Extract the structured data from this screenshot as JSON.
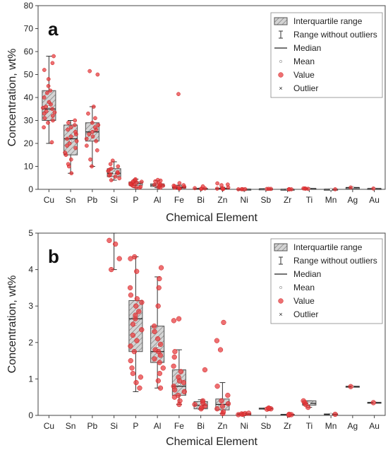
{
  "chart_data": [
    {
      "type": "box",
      "panel_label": "a",
      "xlabel": "Chemical Element",
      "ylabel": "Concentration, wt%",
      "ylim": [
        0,
        80
      ],
      "yticks": [
        "0",
        "10",
        "20",
        "30",
        "40",
        "50",
        "60",
        "70",
        "80"
      ],
      "categories": [
        "Cu",
        "Sn",
        "Pb",
        "Si",
        "P",
        "Al",
        "Fe",
        "Bi",
        "Zn",
        "Ni",
        "Sb",
        "Zr",
        "Ti",
        "Mn",
        "Ag",
        "Au"
      ],
      "legend": {
        "position": "top-right",
        "items": [
          "Interquartile range",
          "Range without outliers",
          "Median",
          "Mean",
          "Value",
          "Outlier"
        ]
      },
      "boxes": [
        {
          "q1": 30,
          "median": 35,
          "q3": 43,
          "whisker_low": 20,
          "whisker_high": 58,
          "mean": 36,
          "values": [
            20.5,
            27,
            29,
            30,
            31,
            32,
            33,
            33.5,
            34,
            35,
            35.5,
            36,
            37,
            38,
            40,
            42,
            43,
            45,
            48,
            52,
            55,
            58
          ]
        },
        {
          "q1": 15,
          "median": 22,
          "q3": 28,
          "whisker_low": 7,
          "whisker_high": 30,
          "mean": 21,
          "values": [
            7,
            10,
            11,
            13,
            15,
            16,
            18,
            19,
            20,
            21,
            22,
            23,
            24,
            25,
            26,
            27,
            28,
            29,
            30
          ]
        },
        {
          "q1": 21,
          "median": 25,
          "q3": 29,
          "whisker_low": 10,
          "whisker_high": 36,
          "mean": 25,
          "values": [
            10,
            13,
            17,
            19,
            21,
            22,
            23,
            24,
            25,
            26,
            27,
            28,
            29,
            31,
            33,
            36,
            50,
            51.5
          ]
        },
        {
          "q1": 5.5,
          "median": 7,
          "q3": 9,
          "whisker_low": 4,
          "whisker_high": 12,
          "mean": 7.3,
          "values": [
            4,
            4.8,
            5.5,
            6,
            6.5,
            7,
            7.5,
            8,
            8.5,
            9,
            10,
            11,
            12.5
          ]
        },
        {
          "q1": 1.8,
          "median": 2.6,
          "q3": 3.2,
          "whisker_low": 0.7,
          "whisker_high": 4.4,
          "mean": 2.5,
          "values": [
            0.7,
            0.9,
            1.1,
            1.5,
            1.9,
            2.1,
            2.4,
            2.6,
            2.9,
            3.1,
            3.3,
            3.5,
            4,
            4.4
          ]
        },
        {
          "q1": 1.2,
          "median": 1.8,
          "q3": 2.4,
          "whisker_low": 0.7,
          "whisker_high": 3.8,
          "mean": 1.9,
          "values": [
            0.7,
            1,
            1.3,
            1.6,
            1.8,
            2,
            2.3,
            2.6,
            3.5,
            3.8,
            4.1
          ]
        },
        {
          "q1": 0.5,
          "median": 0.8,
          "q3": 1.2,
          "whisker_low": 0.3,
          "whisker_high": 1.8,
          "mean": 0.9,
          "values": [
            0.3,
            0.5,
            0.7,
            0.9,
            1.1,
            1.3,
            1.6,
            1.8,
            2.7,
            41.5
          ]
        },
        {
          "q1": 0.2,
          "median": 0.3,
          "q3": 0.4,
          "whisker_low": 0.15,
          "whisker_high": 0.5,
          "mean": 0.3,
          "values": [
            0.2,
            0.3,
            0.4,
            0.5,
            1.3
          ]
        },
        {
          "q1": 0.2,
          "median": 0.3,
          "q3": 0.45,
          "whisker_low": 0.1,
          "whisker_high": 0.9,
          "mean": 0.35,
          "values": [
            0.1,
            0.2,
            0.3,
            0.5,
            0.8,
            1.8,
            2.1,
            2.6
          ]
        },
        {
          "q1": 0.02,
          "median": 0.04,
          "q3": 0.06,
          "whisker_low": 0.01,
          "whisker_high": 0.08,
          "mean": 0.04,
          "values": [
            0.02,
            0.04,
            0.06,
            0.08
          ]
        },
        {
          "q1": 0.17,
          "median": 0.19,
          "q3": 0.2,
          "whisker_low": 0.17,
          "whisker_high": 0.2,
          "mean": 0.19,
          "values": [
            0.17,
            0.19,
            0.2
          ]
        },
        {
          "q1": 0.01,
          "median": 0.02,
          "q3": 0.03,
          "whisker_low": 0.01,
          "whisker_high": 0.04,
          "mean": 0.02,
          "values": [
            0.01,
            0.02,
            0.03,
            0.04
          ]
        },
        {
          "q1": 0.25,
          "median": 0.32,
          "q3": 0.4,
          "whisker_low": 0.2,
          "whisker_high": 0.4,
          "mean": 0.32,
          "values": [
            0.22,
            0.3,
            0.36,
            0.4
          ]
        },
        {
          "q1": 0.02,
          "median": 0.03,
          "q3": 0.04,
          "whisker_low": 0.02,
          "whisker_high": 0.04,
          "mean": 0.03,
          "values": [
            0.03
          ]
        },
        {
          "q1": 0.78,
          "median": 0.79,
          "q3": 0.8,
          "whisker_low": 0.78,
          "whisker_high": 0.8,
          "mean": 0.79,
          "values": [
            0.79
          ]
        },
        {
          "q1": 0.35,
          "median": 0.35,
          "q3": 0.36,
          "whisker_low": 0.35,
          "whisker_high": 0.36,
          "mean": 0.35,
          "values": [
            0.35
          ]
        }
      ]
    },
    {
      "type": "box",
      "panel_label": "b",
      "xlabel": "Chemical Element",
      "ylabel": "Concentration, wt%",
      "ylim": [
        0,
        5
      ],
      "yticks": [
        "0",
        "1",
        "2",
        "3",
        "4",
        "5"
      ],
      "categories": [
        "Cu",
        "Sn",
        "Pb",
        "Si",
        "P",
        "Al",
        "Fe",
        "Bi",
        "Zn",
        "Ni",
        "Sb",
        "Zr",
        "Ti",
        "Mn",
        "Ag",
        "Au"
      ],
      "legend": {
        "position": "top-right",
        "items": [
          "Interquartile range",
          "Range without outliers",
          "Median",
          "Mean",
          "Value",
          "Outlier"
        ]
      },
      "boxes": [
        null,
        null,
        null,
        {
          "q1": null,
          "median": null,
          "q3": null,
          "whisker_low": 4.0,
          "whisker_high": 5.0,
          "mean": null,
          "values": [
            4.0,
            4.3,
            4.7,
            4.8
          ]
        },
        {
          "q1": 1.75,
          "median": 2.65,
          "q3": 3.15,
          "whisker_low": 0.65,
          "whisker_high": 4.35,
          "mean": 2.5,
          "values": [
            0.75,
            0.9,
            1.05,
            1.15,
            1.3,
            1.5,
            1.75,
            1.9,
            2.05,
            2.2,
            2.35,
            2.5,
            2.65,
            2.75,
            2.85,
            3.0,
            3.1,
            3.2,
            3.3,
            3.5,
            3.95,
            4.3,
            4.35
          ]
        },
        {
          "q1": 1.45,
          "median": 1.75,
          "q3": 2.45,
          "whisker_low": 0.75,
          "whisker_high": 3.8,
          "mean": 1.9,
          "values": [
            0.75,
            0.95,
            1.15,
            1.3,
            1.45,
            1.55,
            1.65,
            1.75,
            1.8,
            1.95,
            2.1,
            2.3,
            2.45,
            3.0,
            3.5,
            3.75,
            4.05
          ]
        },
        {
          "q1": 0.55,
          "median": 0.8,
          "q3": 1.25,
          "whisker_low": 0.3,
          "whisker_high": 1.8,
          "mean": 0.85,
          "values": [
            0.3,
            0.4,
            0.5,
            0.55,
            0.65,
            0.7,
            0.8,
            0.9,
            0.95,
            1.05,
            1.2,
            1.35,
            1.6,
            1.75,
            2.6,
            2.65
          ]
        },
        {
          "q1": 0.18,
          "median": 0.28,
          "q3": 0.38,
          "whisker_low": 0.17,
          "whisker_high": 0.43,
          "mean": 0.28,
          "values": [
            0.18,
            0.22,
            0.26,
            0.3,
            0.35,
            0.4,
            1.25
          ]
        },
        {
          "q1": 0.15,
          "median": 0.3,
          "q3": 0.45,
          "whisker_low": 0.05,
          "whisker_high": 0.9,
          "mean": 0.33,
          "values": [
            0.05,
            0.1,
            0.18,
            0.25,
            0.32,
            0.4,
            0.55,
            0.8,
            1.8,
            2.05,
            2.55
          ]
        },
        {
          "q1": 0.02,
          "median": 0.04,
          "q3": 0.05,
          "whisker_low": 0.01,
          "whisker_high": 0.07,
          "mean": 0.04,
          "values": [
            0.02,
            0.03,
            0.04,
            0.05,
            0.06
          ]
        },
        {
          "q1": 0.17,
          "median": 0.19,
          "q3": 0.2,
          "whisker_low": 0.17,
          "whisker_high": 0.2,
          "mean": 0.19,
          "values": [
            0.17,
            0.18,
            0.19,
            0.2
          ]
        },
        {
          "q1": 0.01,
          "median": 0.02,
          "q3": 0.03,
          "whisker_low": 0.01,
          "whisker_high": 0.03,
          "mean": 0.02,
          "values": [
            0.01,
            0.02,
            0.03
          ]
        },
        {
          "q1": 0.28,
          "median": 0.33,
          "q3": 0.4,
          "whisker_low": 0.22,
          "whisker_high": 0.4,
          "mean": 0.33,
          "values": [
            0.22,
            0.3,
            0.35,
            0.4
          ]
        },
        {
          "q1": 0.02,
          "median": 0.03,
          "q3": 0.04,
          "whisker_low": 0.02,
          "whisker_high": 0.04,
          "mean": 0.03,
          "values": [
            0.03
          ]
        },
        {
          "q1": 0.78,
          "median": 0.79,
          "q3": 0.8,
          "whisker_low": 0.78,
          "whisker_high": 0.8,
          "mean": 0.79,
          "values": [
            0.79
          ]
        },
        {
          "q1": 0.35,
          "median": 0.35,
          "q3": 0.36,
          "whisker_low": 0.35,
          "whisker_high": 0.36,
          "mean": 0.35,
          "values": [
            0.35
          ]
        }
      ]
    }
  ],
  "style": {
    "value_color": "#e8383a",
    "box_fill": "#d4d4d4",
    "box_stroke": "#555555",
    "axis_color": "#444444"
  }
}
